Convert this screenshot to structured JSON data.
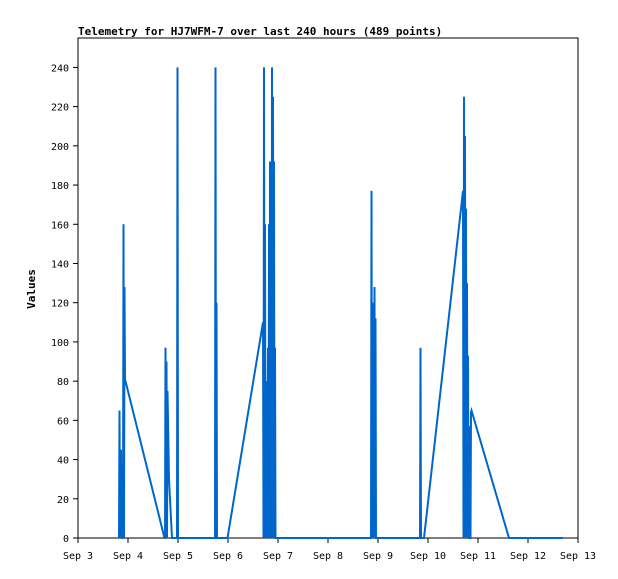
{
  "chart_data": {
    "type": "line",
    "title": "Telemetry for HJ7WFM-7 over last 240 hours (489 points)",
    "xlabel": "",
    "ylabel": "Values",
    "ylim": [
      0,
      255
    ],
    "xlim": [
      3.0,
      13.0
    ],
    "grid": false,
    "line_color": "#0066cc",
    "x_ticks": [
      {
        "value": 3,
        "label": "Sep 3"
      },
      {
        "value": 4,
        "label": "Sep 4"
      },
      {
        "value": 5,
        "label": "Sep 5"
      },
      {
        "value": 6,
        "label": "Sep 6"
      },
      {
        "value": 7,
        "label": "Sep 7"
      },
      {
        "value": 8,
        "label": "Sep 8"
      },
      {
        "value": 9,
        "label": "Sep 9"
      },
      {
        "value": 10,
        "label": "Sep 10"
      },
      {
        "value": 11,
        "label": "Sep 11"
      },
      {
        "value": 12,
        "label": "Sep 12"
      },
      {
        "value": 13,
        "label": "Sep 13"
      }
    ],
    "y_ticks": [
      0,
      20,
      40,
      60,
      80,
      100,
      120,
      140,
      160,
      180,
      200,
      220,
      240
    ],
    "series": [
      {
        "name": "",
        "points": [
          [
            3.82,
            0
          ],
          [
            3.83,
            65
          ],
          [
            3.84,
            0
          ],
          [
            3.86,
            45
          ],
          [
            3.87,
            0
          ],
          [
            3.88,
            30
          ],
          [
            3.89,
            0
          ],
          [
            3.9,
            0
          ],
          [
            3.91,
            160
          ],
          [
            3.92,
            0
          ],
          [
            3.93,
            128
          ],
          [
            3.94,
            80
          ],
          [
            3.95,
            80
          ],
          [
            4.73,
            0
          ],
          [
            4.74,
            0
          ],
          [
            4.75,
            97
          ],
          [
            4.76,
            0
          ],
          [
            4.77,
            90
          ],
          [
            4.78,
            0
          ],
          [
            4.79,
            75
          ],
          [
            4.8,
            60
          ],
          [
            4.82,
            30
          ],
          [
            4.88,
            0
          ],
          [
            4.98,
            0
          ],
          [
            4.99,
            240
          ],
          [
            5.0,
            0
          ],
          [
            5.74,
            0
          ],
          [
            5.75,
            240
          ],
          [
            5.76,
            0
          ],
          [
            5.77,
            120
          ],
          [
            5.78,
            0
          ],
          [
            5.99,
            0
          ],
          [
            6.7,
            110
          ],
          [
            6.71,
            0
          ],
          [
            6.72,
            240
          ],
          [
            6.73,
            0
          ],
          [
            6.74,
            160
          ],
          [
            6.75,
            0
          ],
          [
            6.77,
            80
          ],
          [
            6.78,
            0
          ],
          [
            6.8,
            97
          ],
          [
            6.81,
            0
          ],
          [
            6.82,
            160
          ],
          [
            6.83,
            0
          ],
          [
            6.84,
            192
          ],
          [
            6.85,
            0
          ],
          [
            6.86,
            192
          ],
          [
            6.87,
            0
          ],
          [
            6.88,
            240
          ],
          [
            6.89,
            0
          ],
          [
            6.9,
            225
          ],
          [
            6.91,
            0
          ],
          [
            6.92,
            192
          ],
          [
            6.93,
            0
          ],
          [
            6.94,
            97
          ],
          [
            6.95,
            0
          ],
          [
            8.86,
            0
          ],
          [
            8.87,
            177
          ],
          [
            8.88,
            0
          ],
          [
            8.89,
            120
          ],
          [
            8.9,
            0
          ],
          [
            8.91,
            55
          ],
          [
            8.92,
            0
          ],
          [
            8.93,
            128
          ],
          [
            8.94,
            0
          ],
          [
            8.95,
            112
          ],
          [
            8.96,
            0
          ],
          [
            9.84,
            0
          ],
          [
            9.85,
            97
          ],
          [
            9.86,
            0
          ],
          [
            9.92,
            0
          ],
          [
            10.7,
            177
          ],
          [
            10.71,
            0
          ],
          [
            10.72,
            225
          ],
          [
            10.73,
            0
          ],
          [
            10.74,
            205
          ],
          [
            10.75,
            0
          ],
          [
            10.76,
            168
          ],
          [
            10.77,
            0
          ],
          [
            10.78,
            130
          ],
          [
            10.79,
            0
          ],
          [
            10.8,
            93
          ],
          [
            10.81,
            0
          ],
          [
            10.82,
            57
          ],
          [
            10.83,
            0
          ],
          [
            10.85,
            0
          ],
          [
            10.86,
            64
          ],
          [
            10.87,
            65
          ],
          [
            11.62,
            0
          ],
          [
            12.7,
            0
          ]
        ]
      }
    ]
  }
}
